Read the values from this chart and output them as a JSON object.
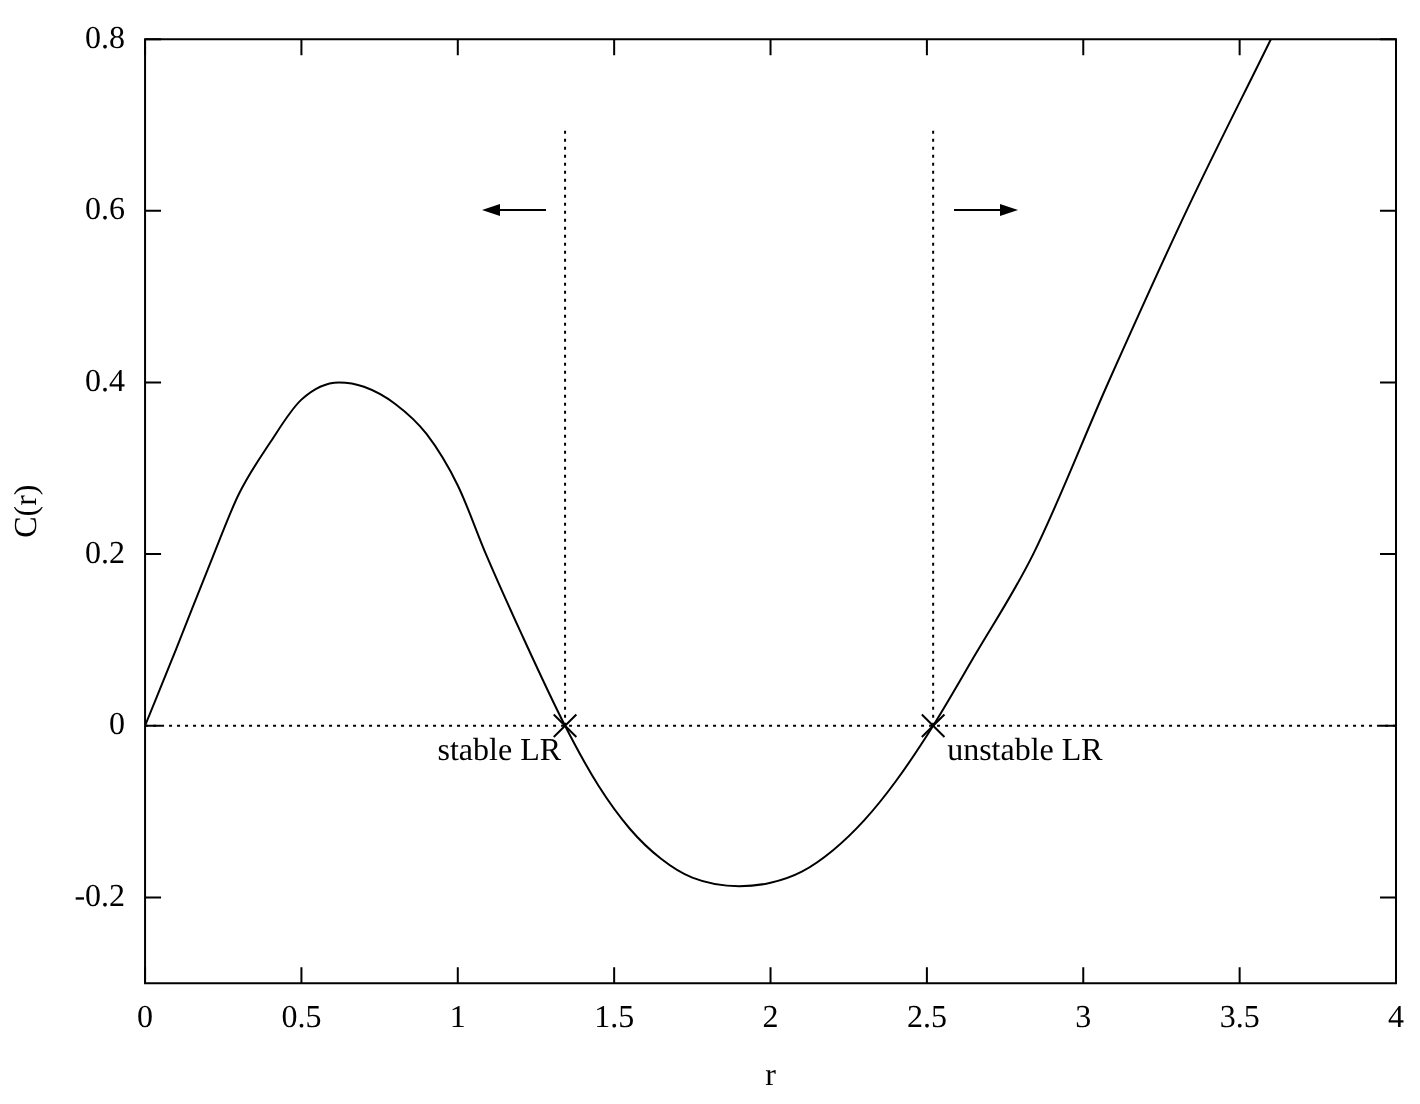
{
  "chart_data": {
    "type": "line",
    "xlabel": "r",
    "ylabel": "C(r)",
    "xlim": [
      0,
      4
    ],
    "xticks": [
      0,
      0.5,
      1,
      1.5,
      2,
      2.5,
      3,
      3.5,
      4
    ],
    "ylim": [
      -0.3,
      0.8
    ],
    "yticks": [
      -0.2,
      0,
      0.2,
      0.4,
      0.6,
      0.8
    ],
    "grid": false,
    "legend": false,
    "series": [
      {
        "color": "#000000",
        "marker": "none",
        "line_style": "solid",
        "x": [
          0,
          0.1,
          0.22,
          0.3,
          0.4,
          0.5,
          0.62,
          0.7,
          0.8,
          0.9,
          1.0,
          1.09,
          1.2,
          1.343,
          1.45,
          1.55,
          1.65,
          1.75,
          1.9,
          2.0,
          2.1,
          2.2,
          2.3,
          2.4,
          2.52,
          2.65,
          2.84,
          3.08,
          3.33,
          3.6
        ],
        "values": [
          0,
          0.09,
          0.2,
          0.27,
          0.33,
          0.38,
          0.4,
          0.395,
          0.375,
          0.34,
          0.28,
          0.2,
          0.11,
          0,
          -0.07,
          -0.12,
          -0.155,
          -0.177,
          -0.187,
          -0.183,
          -0.17,
          -0.145,
          -0.11,
          -0.065,
          0,
          0.08,
          0.2,
          0.4,
          0.6,
          0.8
        ]
      },
      {
        "type": "scatter",
        "color": "#000000",
        "marker": "cross",
        "x": [
          1.343,
          2.52
        ],
        "values": [
          0,
          0
        ]
      }
    ],
    "ref_lines": [
      {
        "axis": "y",
        "value": 0,
        "color": "#000000",
        "line_style": "dotted"
      },
      {
        "axis": "x",
        "value": 1.343,
        "color": "#000000",
        "line_style": "dotted"
      },
      {
        "axis": "x",
        "value": 2.52,
        "color": "#000000",
        "line_style": "dotted"
      }
    ],
    "annotations": [
      {
        "text": "stable LR",
        "x": 1.343,
        "y": 0
      },
      {
        "text": "unstable LR",
        "x": 2.52,
        "y": 0
      }
    ]
  }
}
